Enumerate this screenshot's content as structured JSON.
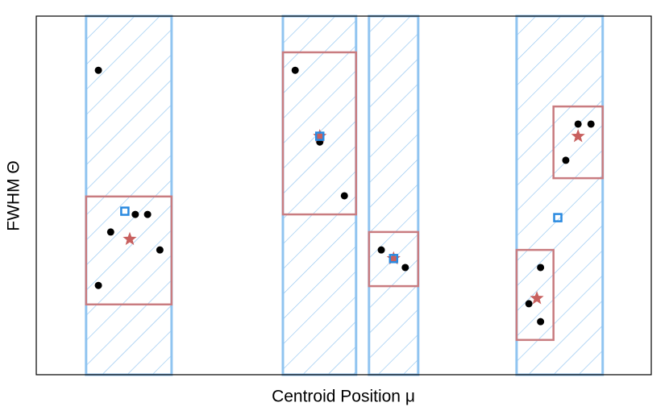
{
  "chart_data": {
    "type": "scatter",
    "xlabel": "Centroid Position μ",
    "ylabel": "FWHM Θ",
    "xlim": [
      0,
      1
    ],
    "ylim": [
      0,
      1
    ],
    "bands": {
      "color": "#90c4f0",
      "x": [
        [
          0.081,
          0.22
        ],
        [
          0.401,
          0.52
        ],
        [
          0.541,
          0.621
        ],
        [
          0.781,
          0.921
        ]
      ]
    },
    "boxes": {
      "color": "#c97c80",
      "x": [
        [
          0.081,
          0.22
        ],
        [
          0.401,
          0.52
        ],
        [
          0.541,
          0.621
        ],
        [
          0.841,
          0.921
        ],
        [
          0.781,
          0.841
        ]
      ],
      "y": [
        [
          0.196,
          0.497
        ],
        [
          0.447,
          0.899
        ],
        [
          0.247,
          0.398
        ],
        [
          0.548,
          0.748
        ],
        [
          0.097,
          0.348
        ]
      ]
    },
    "points": {
      "color": "#000000",
      "x": [
        0.101,
        0.161,
        0.181,
        0.121,
        0.201,
        0.101,
        0.421,
        0.461,
        0.501,
        0.561,
        0.6,
        0.881,
        0.902,
        0.861,
        0.82,
        0.801,
        0.82
      ],
      "y": [
        0.849,
        0.447,
        0.447,
        0.398,
        0.348,
        0.249,
        0.849,
        0.649,
        0.499,
        0.348,
        0.299,
        0.699,
        0.699,
        0.598,
        0.299,
        0.198,
        0.148
      ]
    },
    "squares": {
      "color": "#2a8ae0",
      "x": [
        0.144,
        0.461,
        0.581,
        0.848
      ],
      "y": [
        0.456,
        0.665,
        0.324,
        0.438
      ]
    },
    "stars": {
      "color": "#c8605f",
      "x": [
        0.152,
        0.461,
        0.581,
        0.881,
        0.814
      ],
      "y": [
        0.378,
        0.665,
        0.324,
        0.665,
        0.213
      ]
    }
  }
}
